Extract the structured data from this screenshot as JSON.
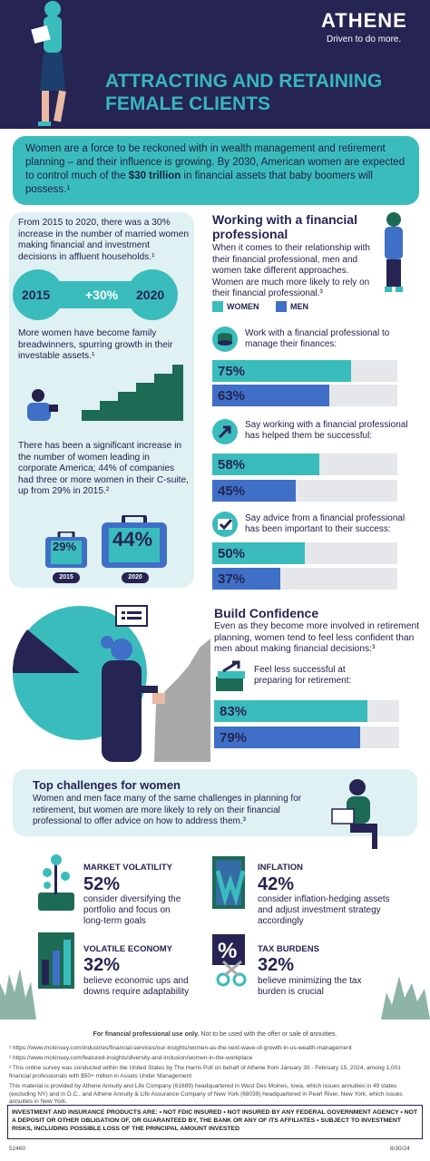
{
  "header": {
    "logo": "ATHENE",
    "tagline": "Driven to do more.",
    "title_line1": "ATTRACTING AND RETAINING",
    "title_line2": "FEMALE CLIENTS"
  },
  "intro": {
    "text_before": "Women are a force to be reckoned with in wealth management and retirement planning – and their influence is growing. By 2030, American women are expected to control much of the ",
    "highlight": "$30 trillion",
    "text_after": " in financial assets that baby boomers will possess.¹"
  },
  "left_panel": {
    "stat1_text": "From 2015 to 2020, there was a 30% increase in the number of married women making financial and investment decisions in affluent households.¹",
    "year_start": "2015",
    "change": "+30%",
    "year_end": "2020",
    "stat2_text": "More women have become family breadwinners, spurring growth in their investable assets.¹",
    "stat3_text": "There has been a significant increase in the number of women leading in corporate America; 44% of companies had three or more women in their C-suite, up from 29% in 2015.²",
    "briefcase_2015_value": "29%",
    "briefcase_2015_label": "2015",
    "briefcase_2020_value": "44%",
    "briefcase_2020_label": "2020"
  },
  "working": {
    "title_line1": "Working with a financial",
    "title_line2": "professional",
    "intro": "When it comes to their relationship with their financial professional, men and women take different approaches. Women are much more likely to rely on their financial professional.³",
    "legend_women": "WOMEN",
    "legend_men": "MEN",
    "colors": {
      "women": "#3bbcbc",
      "men": "#3f6fc7"
    },
    "stats": [
      {
        "question": "Work with a financial professional to manage their finances:",
        "women": "75%",
        "men": "63%",
        "women_fraction": 0.75,
        "men_fraction": 0.63,
        "icon": "coins-icon"
      },
      {
        "question": "Say working with a financial professional has helped them be successful:",
        "women": "58%",
        "men": "45%",
        "women_fraction": 0.58,
        "men_fraction": 0.45,
        "icon": "arrow-up-icon"
      },
      {
        "question": "Say advice from a financial professional has been important to their success:",
        "women": "50%",
        "men": "37%",
        "women_fraction": 0.5,
        "men_fraction": 0.37,
        "icon": "checkmark-icon"
      }
    ]
  },
  "confidence": {
    "title": "Build Confidence",
    "text": "Even as they become more involved in retirement planning, women tend to feel less confident than men about making financial decisions:³",
    "question": "Feel less successful at preparing for retirement:",
    "women": "83%",
    "men": "79%",
    "women_fraction": 0.83,
    "men_fraction": 0.79
  },
  "challenges": {
    "title": "Top challenges for women",
    "text": "Women and men face many of the same challenges in planning for retirement, but women are more likely to rely on their financial professional to offer advice on how to address them.³",
    "items": [
      {
        "category": "MARKET VOLATILITY",
        "percent": "52%",
        "description": "consider diversifying the portfolio and focus on long-term goals"
      },
      {
        "category": "INFLATION",
        "percent": "42%",
        "description": "consider inflation-hedging assets and adjust investment strategy accordingly"
      },
      {
        "category": "VOLATILE ECONOMY",
        "percent": "32%",
        "description": "believe economic ups and downs require adaptability"
      },
      {
        "category": "TAX BURDENS",
        "percent": "32%",
        "description": "believe minimizing the tax burden is crucial"
      }
    ]
  },
  "footer": {
    "use_bold": "For financial professional use only.",
    "use_rest": " Not to be used with the offer or sale of annuities.",
    "note1": "¹ https://www.mckinsey.com/industries/financial-services/our-insights/women-as-the-next-wave-of-growth-in-us-wealth-management",
    "note2": "² https://www.mckinsey.com/featured-insights/diversity-and-inclusion/women-in-the-workplace",
    "note3": "³ This online survey was conducted within the United States by The Harris Poll on behalf of Athene from January 30 - February 15, 2024, among 1,001 financial professionals with $50+ million in Assets Under Management",
    "material": "This material is provided by Athene Annuity and Life Company (61689) headquartered in West Des Moines, Iowa, which issues annuities in 49 states (excluding NY) and in D.C., and Athene Annuity & Life Assurance Company of New York (68039) headquartered in Pearl River, New York, which issues annuities in New York.",
    "disclaimer": "INVESTMENT AND INSURANCE PRODUCTS ARE: • NOT FDIC INSURED • NOT INSURED BY ANY FEDERAL GOVERNMENT AGENCY • NOT A DEPOSIT OR OTHER OBLIGATION OF, OR GUARANTEED BY, THE BANK OR ANY OF ITS AFFILIATES • SUBJECT TO INVESTMENT RISKS, INCLUDING POSSIBLE LOSS OF THE PRINCIPAL AMOUNT INVESTED",
    "code": "52460",
    "date": "8/30/24"
  }
}
